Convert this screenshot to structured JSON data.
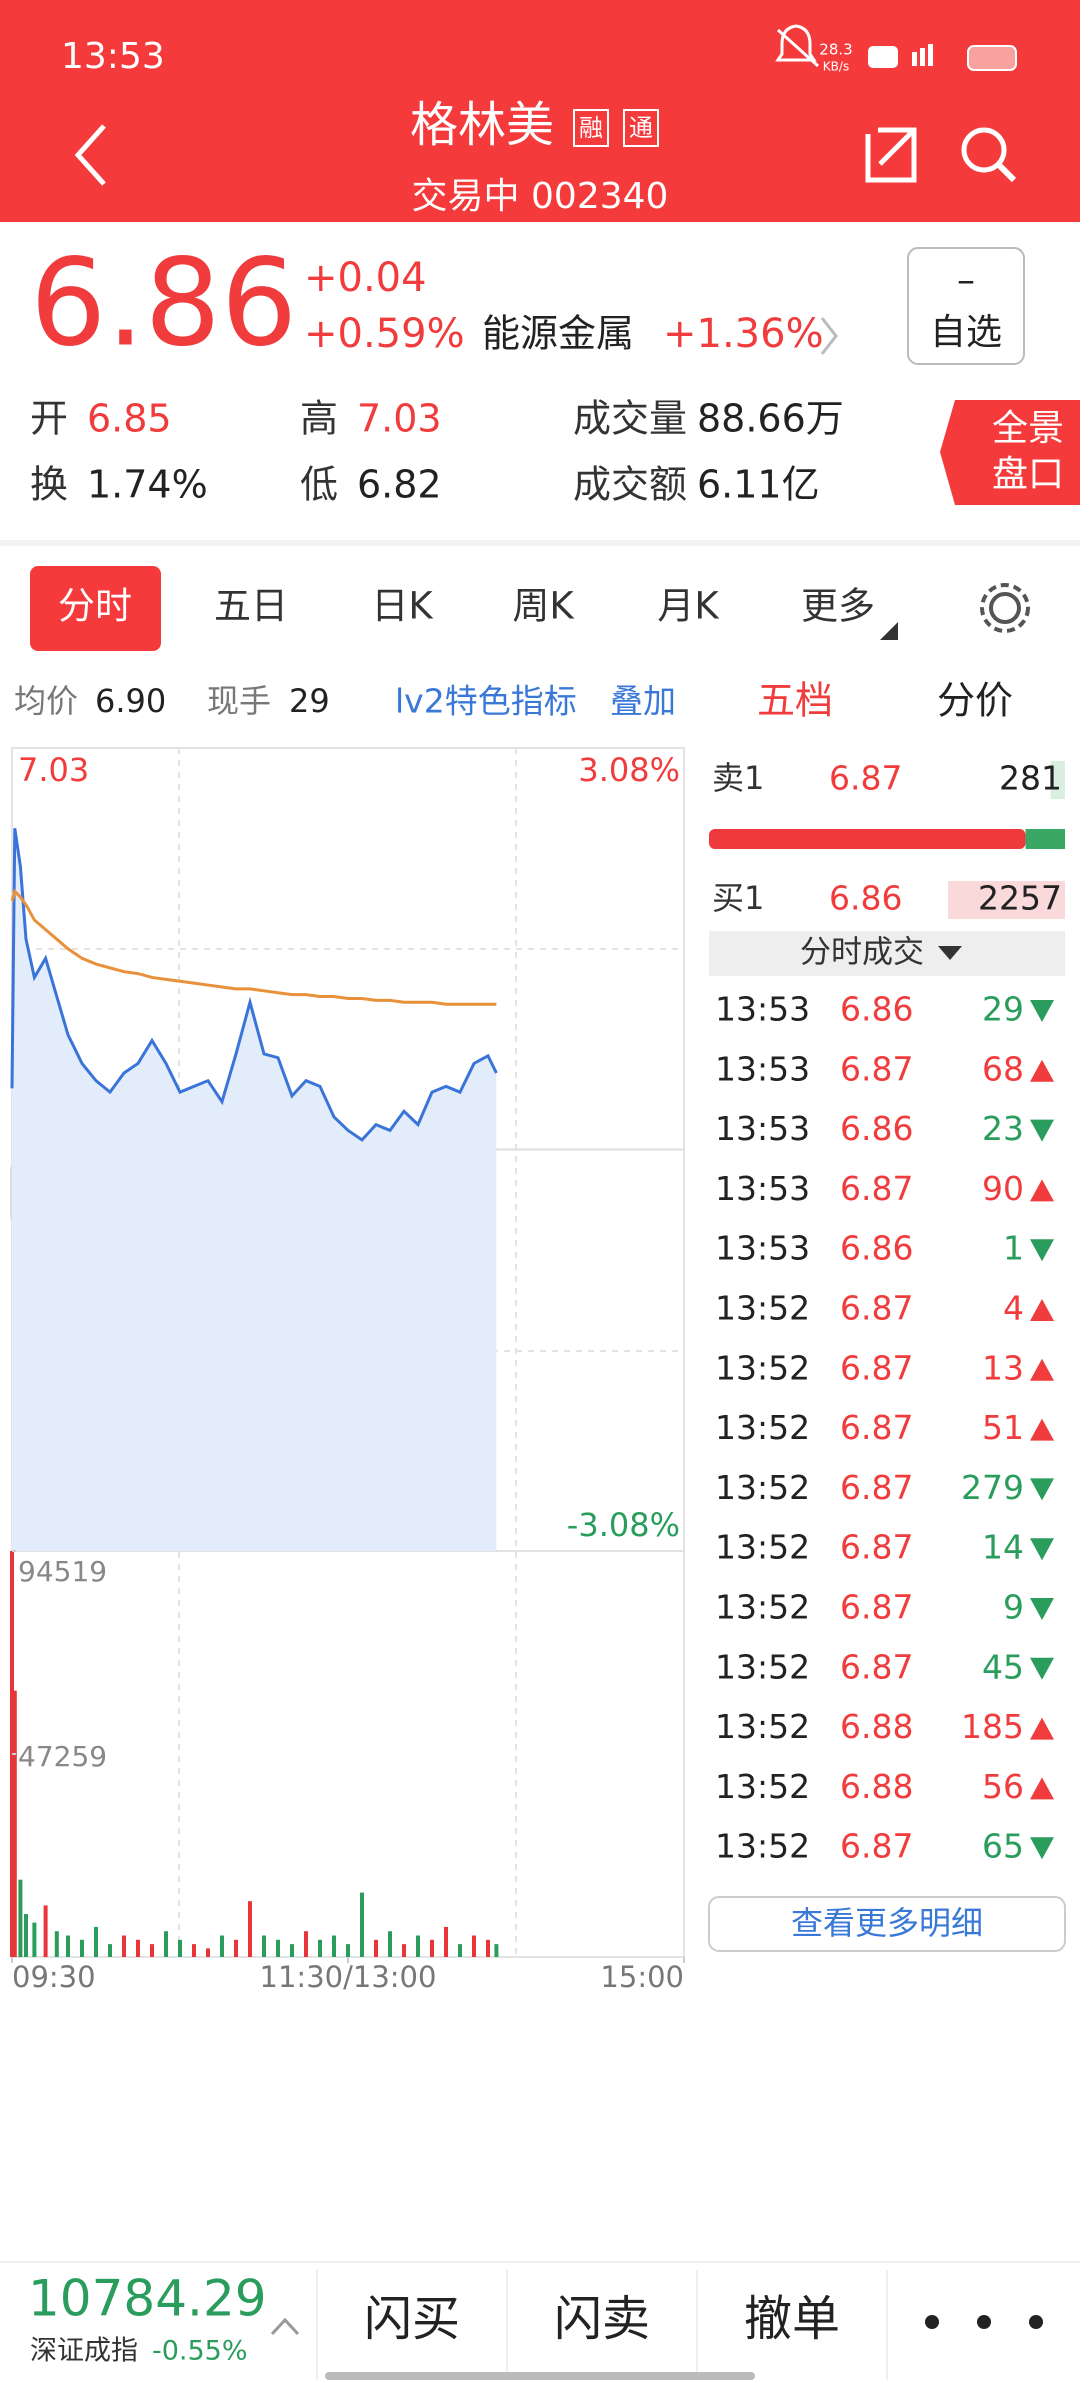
{
  "status_bar": {
    "time": "13:53",
    "speed": "28.3",
    "speed_unit": "KB/s"
  },
  "header": {
    "title": "格林美",
    "badges": [
      "融",
      "通"
    ],
    "status": "交易中",
    "code": "002340"
  },
  "quote": {
    "price": "6.86",
    "change": "+0.04",
    "change_pct": "+0.59%",
    "sector": "能源金属",
    "sector_change": "+1.36%",
    "watch_button": {
      "symbol": "–",
      "label": "自选"
    },
    "stats": [
      {
        "label": "开",
        "value": "6.85"
      },
      {
        "label": "高",
        "value": "7.03"
      },
      {
        "label": "成交量",
        "value": "88.66万"
      },
      {
        "label": "换",
        "value": "1.74%"
      },
      {
        "label": "低",
        "value": "6.82"
      },
      {
        "label": "成交额",
        "value": "6.11亿"
      }
    ],
    "panorama": [
      "全景",
      "盘口"
    ]
  },
  "tabs": [
    "分时",
    "五日",
    "日K",
    "周K",
    "月K",
    "更多"
  ],
  "info": {
    "items": [
      {
        "label": "均价",
        "value": "6.90"
      },
      {
        "label": "现手",
        "value": "29"
      }
    ],
    "links": [
      "lv2特色指标",
      "叠加"
    ],
    "panel_tabs": [
      "五档",
      "分价"
    ]
  },
  "chart_data": {
    "type": "line",
    "x": [
      0,
      1,
      3,
      5,
      8,
      12,
      16,
      20,
      25,
      30,
      35,
      40,
      45,
      50,
      55,
      60,
      65,
      70,
      75,
      80,
      85,
      90,
      95,
      100,
      105,
      110,
      115,
      120,
      125,
      130,
      135,
      140,
      145,
      150,
      155,
      160,
      165,
      170,
      173
    ],
    "series": [
      {
        "color": "#3b74d9",
        "values": [
          6.852,
          6.988,
          6.968,
          6.93,
          6.91,
          6.92,
          6.9,
          6.88,
          6.865,
          6.856,
          6.85,
          6.86,
          6.865,
          6.877,
          6.865,
          6.85,
          6.853,
          6.856,
          6.845,
          6.87,
          6.897,
          6.87,
          6.868,
          6.848,
          6.856,
          6.853,
          6.837,
          6.83,
          6.825,
          6.833,
          6.83,
          6.84,
          6.833,
          6.85,
          6.853,
          6.85,
          6.865,
          6.869,
          6.86
        ]
      },
      {
        "color": "#e8913a",
        "values": [
          6.95,
          6.955,
          6.952,
          6.948,
          6.94,
          6.935,
          6.93,
          6.925,
          6.92,
          6.917,
          6.915,
          6.913,
          6.912,
          6.91,
          6.909,
          6.908,
          6.907,
          6.906,
          6.905,
          6.904,
          6.904,
          6.903,
          6.902,
          6.901,
          6.901,
          6.9,
          6.9,
          6.899,
          6.899,
          6.898,
          6.898,
          6.897,
          6.897,
          6.897,
          6.896,
          6.896,
          6.896,
          6.896,
          6.896
        ]
      }
    ],
    "xlim": [
      0,
      240
    ],
    "xticks": [
      {
        "value": 0,
        "label": "09:30"
      },
      {
        "value": 120,
        "label": "11:30/13:00"
      },
      {
        "value": 240,
        "label": "15:00"
      }
    ],
    "ylim": [
      6.61,
      7.03
    ],
    "yticks": [
      7.03,
      6.82,
      6.61
    ],
    "y_right_labels": [
      "3.08%",
      "-3.08%"
    ],
    "volume": {
      "values": [
        94519,
        62000,
        18000,
        10000,
        8000,
        12000,
        6000,
        5000,
        4000,
        7000,
        3000,
        5000,
        4000,
        3000,
        6000,
        4000,
        3000,
        2000,
        5000,
        4000,
        13000,
        5000,
        4000,
        3000,
        6000,
        4000,
        5000,
        3000,
        15000,
        4000,
        6000,
        3000,
        5000,
        4000,
        7000,
        3000,
        5000,
        4000,
        3000
      ],
      "ylim": [
        0,
        94519
      ],
      "yticks": [
        94519,
        47259
      ],
      "up_color": "#e8353a",
      "down_color": "#2a9d5c"
    }
  },
  "order_book": {
    "ask": {
      "label": "卖1",
      "price": "6.87",
      "volume": 281
    },
    "bid": {
      "label": "买1",
      "price": "6.86",
      "volume": 2257
    }
  },
  "trades_header": "分时成交",
  "trades": [
    {
      "time": "13:53",
      "price": "6.86",
      "volume": 29,
      "direction": "down"
    },
    {
      "time": "13:53",
      "price": "6.87",
      "volume": 68,
      "direction": "up"
    },
    {
      "time": "13:53",
      "price": "6.86",
      "volume": 23,
      "direction": "down"
    },
    {
      "time": "13:53",
      "price": "6.87",
      "volume": 90,
      "direction": "up"
    },
    {
      "time": "13:53",
      "price": "6.86",
      "volume": 1,
      "direction": "down"
    },
    {
      "time": "13:52",
      "price": "6.87",
      "volume": 4,
      "direction": "up"
    },
    {
      "time": "13:52",
      "price": "6.87",
      "volume": 13,
      "direction": "up"
    },
    {
      "time": "13:52",
      "price": "6.87",
      "volume": 51,
      "direction": "up"
    },
    {
      "time": "13:52",
      "price": "6.87",
      "volume": 279,
      "direction": "down"
    },
    {
      "time": "13:52",
      "price": "6.87",
      "volume": 14,
      "direction": "down"
    },
    {
      "time": "13:52",
      "price": "6.87",
      "volume": 9,
      "direction": "down"
    },
    {
      "time": "13:52",
      "price": "6.87",
      "volume": 45,
      "direction": "down"
    },
    {
      "time": "13:52",
      "price": "6.88",
      "volume": 185,
      "direction": "up"
    },
    {
      "time": "13:52",
      "price": "6.88",
      "volume": 56,
      "direction": "up"
    },
    {
      "time": "13:52",
      "price": "6.87",
      "volume": 65,
      "direction": "down"
    }
  ],
  "more_button": "查看更多明细",
  "bottom_bar": {
    "index_value": "10784.29",
    "index_name": "深证成指",
    "index_change": "-0.55%",
    "actions": [
      "闪买",
      "闪卖",
      "撤单"
    ]
  }
}
